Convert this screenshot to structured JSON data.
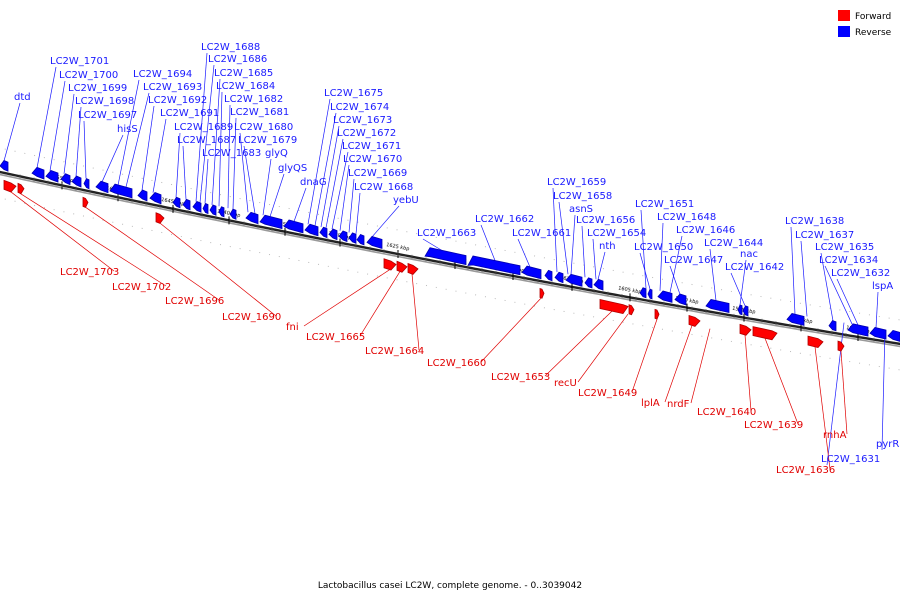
{
  "caption": "Lactobacillus casei LC2W, complete genome. - 0..3039042",
  "legend": {
    "forward": {
      "label": "Forward",
      "color": "#ff0000"
    },
    "reverse": {
      "label": "Reverse",
      "color": "#0000ff"
    }
  },
  "ticks": [
    "1655 kbp",
    "1650 kbp",
    "1645 kbp",
    "1640 kbp",
    "1635 kbp",
    "1630 kbp",
    "1625 kbp",
    "1620 kbp",
    "1615 kbp",
    "1610 kbp",
    "1605 kbp",
    "1600 kbp",
    "1595 kbp",
    "1590 kbp",
    "1585 kbp"
  ],
  "reverse_labels": [
    "dtd",
    "LC2W_1701",
    "LC2W_1700",
    "LC2W_1699",
    "LC2W_1698",
    "LC2W_1697",
    "hisS",
    "LC2W_1694",
    "LC2W_1693",
    "LC2W_1692",
    "LC2W_1691",
    "LC2W_1689",
    "LC2W_1687",
    "LC2W_1683",
    "LC2W_1688",
    "LC2W_1686",
    "LC2W_1685",
    "LC2W_1684",
    "LC2W_1682",
    "LC2W_1681",
    "LC2W_1680",
    "LC2W_1679",
    "glyQ",
    "glyQS",
    "dnaG",
    "LC2W_1675",
    "LC2W_1674",
    "LC2W_1673",
    "LC2W_1672",
    "LC2W_1671",
    "LC2W_1670",
    "LC2W_1669",
    "LC2W_1668",
    "yebU",
    "LC2W_1663",
    "LC2W_1662",
    "LC2W_1661",
    "LC2W_1659",
    "LC2W_1658",
    "asnS",
    "LC2W_1656",
    "LC2W_1654",
    "nth",
    "LC2W_1651",
    "LC2W_1648",
    "LC2W_1650",
    "LC2W_1646",
    "LC2W_1647",
    "LC2W_1644",
    "nac",
    "LC2W_1642",
    "LC2W_1638",
    "LC2W_1637",
    "LC2W_1635",
    "LC2W_1634",
    "LC2W_1632",
    "lspA",
    "LC2W_1631",
    "pyrR"
  ],
  "forward_labels": [
    "LC2W_1703",
    "LC2W_1702",
    "LC2W_1696",
    "LC2W_1690",
    "fni",
    "LC2W_1665",
    "LC2W_1664",
    "LC2W_1660",
    "LC2W_1653",
    "recU",
    "LC2W_1649",
    "lplA",
    "nrdF",
    "LC2W_1640",
    "LC2W_1639",
    "rnhA",
    "LC2W_1636"
  ]
}
